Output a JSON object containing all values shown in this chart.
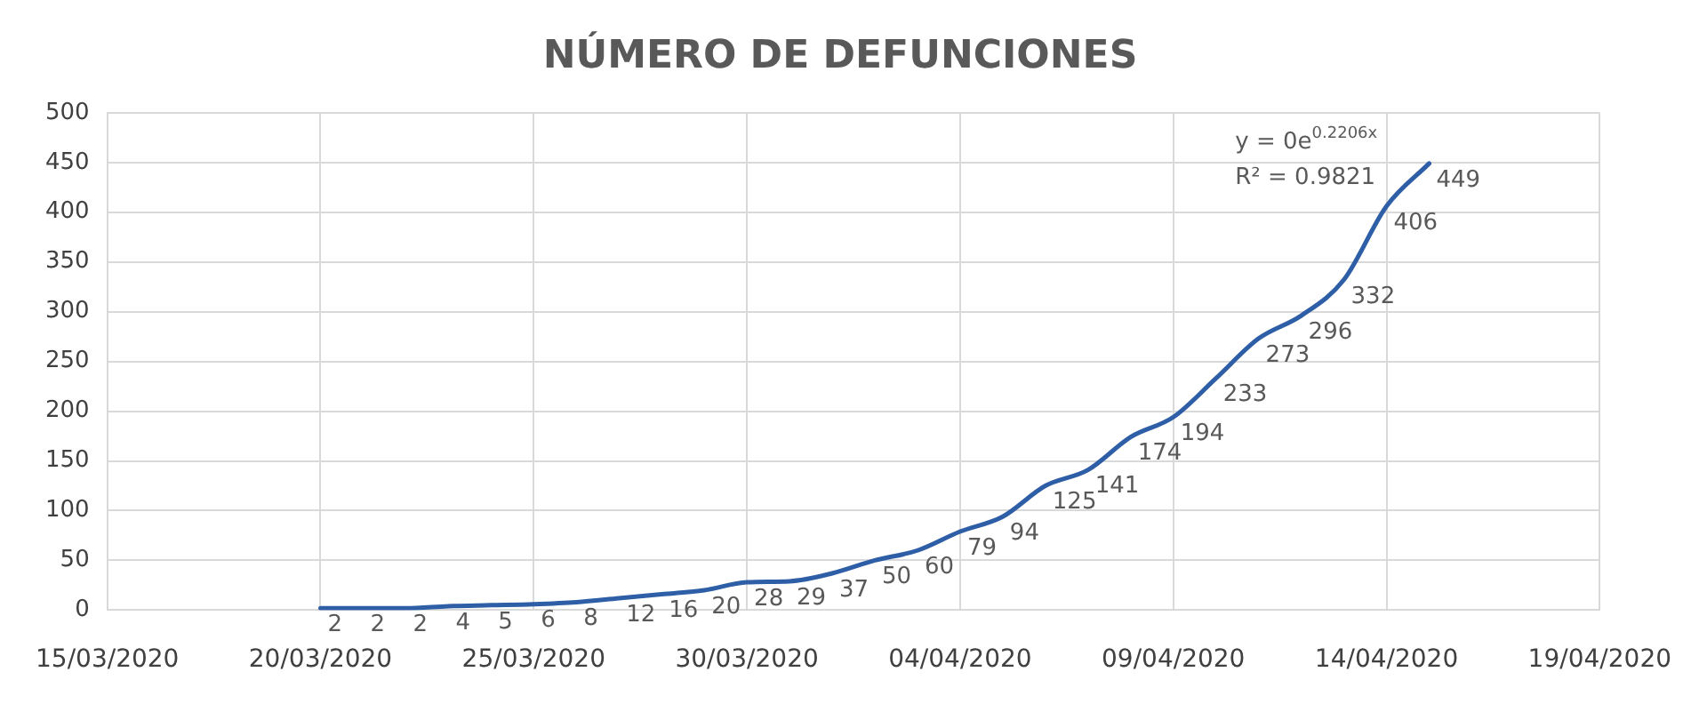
{
  "chart_data": {
    "type": "line",
    "title": "NÚMERO DE DEFUNCIONES",
    "x": [
      "2020-03-20",
      "2020-03-21",
      "2020-03-22",
      "2020-03-23",
      "2020-03-24",
      "2020-03-25",
      "2020-03-26",
      "2020-03-27",
      "2020-03-28",
      "2020-03-29",
      "2020-03-30",
      "2020-03-31",
      "2020-04-01",
      "2020-04-02",
      "2020-04-03",
      "2020-04-04",
      "2020-04-05",
      "2020-04-06",
      "2020-04-07",
      "2020-04-08",
      "2020-04-09",
      "2020-04-10",
      "2020-04-11",
      "2020-04-12",
      "2020-04-13",
      "2020-04-14",
      "2020-04-15"
    ],
    "series": [
      {
        "color": "#2e5fa6",
        "values": [
          2,
          2,
          2,
          4,
          5,
          6,
          8,
          12,
          16,
          20,
          28,
          29,
          37,
          50,
          60,
          79,
          94,
          125,
          141,
          174,
          194,
          233,
          273,
          296,
          332,
          406,
          449
        ]
      }
    ],
    "xlim": [
      "2020-03-15",
      "2020-04-19"
    ],
    "xticks": [
      {
        "value": "2020-03-15",
        "label": "15/03/2020"
      },
      {
        "value": "2020-03-20",
        "label": "20/03/2020"
      },
      {
        "value": "2020-03-25",
        "label": "25/03/2020"
      },
      {
        "value": "2020-03-30",
        "label": "30/03/2020"
      },
      {
        "value": "2020-04-04",
        "label": "04/04/2020"
      },
      {
        "value": "2020-04-09",
        "label": "09/04/2020"
      },
      {
        "value": "2020-04-14",
        "label": "14/04/2020"
      },
      {
        "value": "2020-04-19",
        "label": "19/04/2020"
      }
    ],
    "ylim": [
      0,
      500
    ],
    "yticks": [
      0,
      50,
      100,
      150,
      200,
      250,
      300,
      350,
      400,
      450,
      500
    ],
    "grid": true,
    "marker": "none",
    "line_style": "solid",
    "data_labels": true,
    "annotations": [
      "y = 0e$^{0.2206x}$",
      "R² = 0.9821"
    ]
  }
}
